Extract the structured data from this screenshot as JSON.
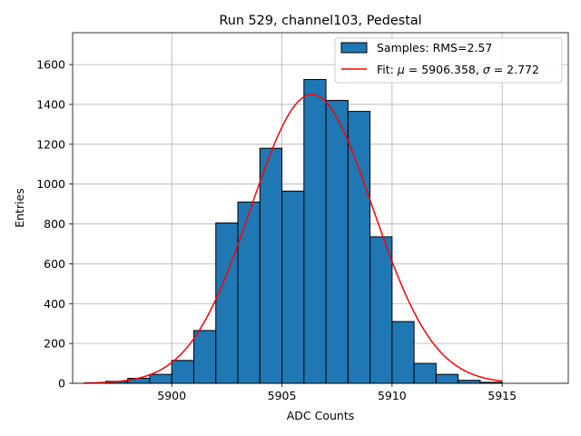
{
  "chart_data": {
    "type": "bar",
    "title": "Run 529, channel103, Pedestal",
    "xlabel": "ADC Counts",
    "ylabel": "Entries",
    "xlim": [
      5895.5,
      5918
    ],
    "ylim": [
      0,
      1760
    ],
    "xticks": [
      5900,
      5905,
      5910,
      5915
    ],
    "yticks": [
      0,
      200,
      400,
      600,
      800,
      1000,
      1200,
      1400,
      1600
    ],
    "grid": true,
    "legend_position": "top-right",
    "histogram": {
      "name": "Samples: RMS=2.57",
      "bin_edges": [
        5896,
        5897,
        5898,
        5899,
        5900,
        5901,
        5902,
        5903,
        5904,
        5905,
        5906,
        5907,
        5908,
        5909,
        5910,
        5911,
        5912,
        5913,
        5914,
        5915,
        5916,
        5917
      ],
      "counts": [
        0,
        10,
        25,
        45,
        115,
        265,
        805,
        910,
        1180,
        965,
        1525,
        1420,
        1365,
        735,
        310,
        100,
        45,
        15,
        5,
        0,
        0
      ],
      "color": "#1f77b4",
      "edge_color": "#000000"
    },
    "fit": {
      "name": "Fit: $\\mu$ = 5906.358, $\\sigma$ = 2.772",
      "mu": 5906.358,
      "sigma": 2.772,
      "peak": 1450,
      "x_range": [
        5896,
        5915
      ],
      "color": "#ff0000"
    },
    "legend": {
      "samples_label": "Samples: RMS=2.57",
      "fit_prefix": "Fit: ",
      "mu_symbol": "μ",
      "mu_text": " = 5906.358, ",
      "sigma_symbol": "σ",
      "sigma_text": " = 2.772"
    }
  }
}
